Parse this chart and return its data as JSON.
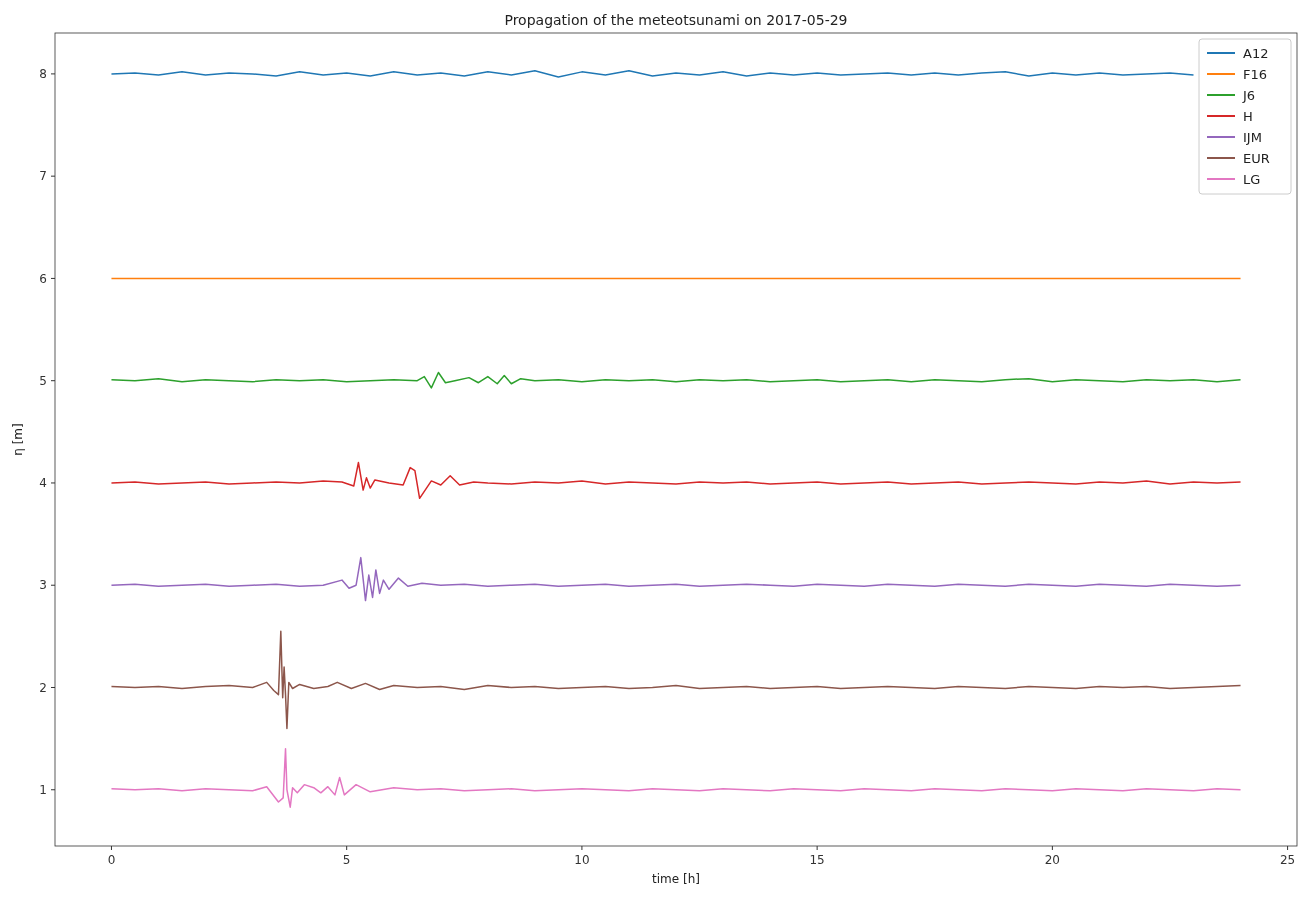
{
  "chart_data": {
    "type": "line",
    "title": "Propagation of the meteotsunami on 2017-05-29",
    "xlabel": "time [h]",
    "ylabel": "η [m]",
    "xlim": [
      -1.2,
      25.2
    ],
    "ylim": [
      0.45,
      8.4
    ],
    "xticks": [
      0,
      5,
      10,
      15,
      20,
      25
    ],
    "yticks": [
      1,
      2,
      3,
      4,
      5,
      6,
      7,
      8
    ],
    "grid": false,
    "legend": "top right",
    "series": [
      {
        "name": "A12",
        "color": "#1f77b4",
        "x": [
          0,
          0.5,
          1,
          1.5,
          2,
          2.5,
          3,
          3.5,
          4,
          4.5,
          5,
          5.5,
          6,
          6.5,
          7,
          7.5,
          8,
          8.5,
          9,
          9.5,
          10,
          10.5,
          11,
          11.5,
          12,
          12.5,
          13,
          13.5,
          14,
          14.5,
          15,
          15.5,
          16,
          16.5,
          17,
          17.5,
          18,
          18.5,
          19,
          19.5,
          20,
          20.5,
          21,
          21.5,
          22,
          22.5,
          23
        ],
        "values": [
          8.0,
          8.01,
          7.99,
          8.02,
          7.99,
          8.01,
          8.0,
          7.98,
          8.02,
          7.99,
          8.01,
          7.98,
          8.02,
          7.99,
          8.01,
          7.98,
          8.02,
          7.99,
          8.03,
          7.97,
          8.02,
          7.99,
          8.03,
          7.98,
          8.01,
          7.99,
          8.02,
          7.98,
          8.01,
          7.99,
          8.01,
          7.99,
          8.0,
          8.01,
          7.99,
          8.01,
          7.99,
          8.01,
          8.02,
          7.98,
          8.01,
          7.99,
          8.01,
          7.99,
          8.0,
          8.01,
          7.99
        ]
      },
      {
        "name": "F16",
        "color": "#ff7f0e",
        "x": [
          0,
          24
        ],
        "values": [
          6,
          6
        ]
      },
      {
        "name": "J6",
        "color": "#2ca02c",
        "x": [
          0,
          0.5,
          1,
          1.5,
          2,
          2.5,
          3,
          3.5,
          4,
          4.5,
          5,
          5.5,
          6,
          6.5,
          6.65,
          6.8,
          6.95,
          7.1,
          7.3,
          7.6,
          7.8,
          8.0,
          8.2,
          8.35,
          8.5,
          8.7,
          9,
          9.5,
          10,
          10.5,
          11,
          11.5,
          12,
          12.5,
          13,
          13.5,
          14,
          14.5,
          15,
          15.5,
          16,
          16.5,
          17,
          17.5,
          18,
          18.5,
          19,
          19.5,
          20,
          20.5,
          21,
          21.5,
          22,
          22.5,
          23,
          23.5,
          24
        ],
        "values": [
          5.01,
          5.0,
          5.02,
          4.99,
          5.01,
          5.0,
          4.99,
          5.01,
          5.0,
          5.01,
          4.99,
          5.0,
          5.01,
          5.0,
          5.04,
          4.93,
          5.08,
          4.98,
          5.0,
          5.03,
          4.98,
          5.04,
          4.97,
          5.05,
          4.97,
          5.02,
          5.0,
          5.01,
          4.99,
          5.01,
          5.0,
          5.01,
          4.99,
          5.01,
          5.0,
          5.01,
          4.99,
          5.0,
          5.01,
          4.99,
          5.0,
          5.01,
          4.99,
          5.01,
          5.0,
          4.99,
          5.01,
          5.02,
          4.99,
          5.01,
          5.0,
          4.99,
          5.01,
          5.0,
          5.01,
          4.99,
          5.01
        ]
      },
      {
        "name": "H",
        "color": "#d62728",
        "x": [
          0,
          0.5,
          1,
          1.5,
          2,
          2.5,
          3,
          3.5,
          4,
          4.5,
          4.9,
          5.15,
          5.25,
          5.35,
          5.42,
          5.5,
          5.6,
          5.9,
          6.2,
          6.35,
          6.45,
          6.55,
          6.8,
          7.0,
          7.2,
          7.4,
          7.7,
          8,
          8.5,
          9,
          9.5,
          10,
          10.5,
          11,
          11.5,
          12,
          12.5,
          13,
          13.5,
          14,
          14.5,
          15,
          15.5,
          16,
          16.5,
          17,
          17.5,
          18,
          18.5,
          19,
          19.5,
          20,
          20.5,
          21,
          21.5,
          22,
          22.5,
          23,
          23.5,
          24
        ],
        "values": [
          4.0,
          4.01,
          3.99,
          4.0,
          4.01,
          3.99,
          4.0,
          4.01,
          4.0,
          4.02,
          4.01,
          3.97,
          4.2,
          3.93,
          4.05,
          3.95,
          4.03,
          4.0,
          3.98,
          4.15,
          4.12,
          3.85,
          4.02,
          3.98,
          4.07,
          3.98,
          4.01,
          4.0,
          3.99,
          4.01,
          4.0,
          4.02,
          3.99,
          4.01,
          4.0,
          3.99,
          4.01,
          4.0,
          4.01,
          3.99,
          4.0,
          4.01,
          3.99,
          4.0,
          4.01,
          3.99,
          4.0,
          4.01,
          3.99,
          4.0,
          4.01,
          4.0,
          3.99,
          4.01,
          4.0,
          4.02,
          3.99,
          4.01,
          4.0,
          4.01
        ]
      },
      {
        "name": "IJM",
        "color": "#9467bd",
        "x": [
          0,
          0.5,
          1,
          1.5,
          2,
          2.5,
          3,
          3.5,
          4,
          4.5,
          4.9,
          5.05,
          5.2,
          5.3,
          5.4,
          5.47,
          5.55,
          5.62,
          5.7,
          5.78,
          5.9,
          6.1,
          6.3,
          6.6,
          7,
          7.5,
          8,
          8.5,
          9,
          9.5,
          10,
          10.5,
          11,
          11.5,
          12,
          12.5,
          13,
          13.5,
          14,
          14.5,
          15,
          15.5,
          16,
          16.5,
          17,
          17.5,
          18,
          18.5,
          19,
          19.5,
          20,
          20.5,
          21,
          21.5,
          22,
          22.5,
          23,
          23.5,
          24
        ],
        "values": [
          3.0,
          3.01,
          2.99,
          3.0,
          3.01,
          2.99,
          3.0,
          3.01,
          2.99,
          3.0,
          3.05,
          2.97,
          3.0,
          3.27,
          2.85,
          3.1,
          2.88,
          3.15,
          2.92,
          3.05,
          2.96,
          3.07,
          2.99,
          3.02,
          3.0,
          3.01,
          2.99,
          3.0,
          3.01,
          2.99,
          3.0,
          3.01,
          2.99,
          3.0,
          3.01,
          2.99,
          3.0,
          3.01,
          3.0,
          2.99,
          3.01,
          3.0,
          2.99,
          3.01,
          3.0,
          2.99,
          3.01,
          3.0,
          2.99,
          3.01,
          3.0,
          2.99,
          3.01,
          3.0,
          2.99,
          3.01,
          3.0,
          2.99,
          3.0
        ]
      },
      {
        "name": "EUR",
        "color": "#8c564b",
        "x": [
          0,
          0.5,
          1,
          1.5,
          2,
          2.5,
          3,
          3.3,
          3.45,
          3.55,
          3.6,
          3.64,
          3.67,
          3.7,
          3.73,
          3.77,
          3.85,
          4.0,
          4.3,
          4.6,
          4.8,
          5.1,
          5.4,
          5.7,
          6,
          6.5,
          7,
          7.5,
          8,
          8.5,
          9,
          9.5,
          10,
          10.5,
          11,
          11.5,
          12,
          12.5,
          13,
          13.5,
          14,
          14.5,
          15,
          15.5,
          16,
          16.5,
          17,
          17.5,
          18,
          18.5,
          19,
          19.5,
          20,
          20.5,
          21,
          21.5,
          22,
          22.5,
          23,
          23.5,
          24
        ],
        "values": [
          2.01,
          2.0,
          2.01,
          1.99,
          2.01,
          2.02,
          2.0,
          2.05,
          1.97,
          1.93,
          2.55,
          1.9,
          2.2,
          1.93,
          1.6,
          2.05,
          1.99,
          2.03,
          1.99,
          2.01,
          2.05,
          1.99,
          2.04,
          1.98,
          2.02,
          2.0,
          2.01,
          1.98,
          2.02,
          2.0,
          2.01,
          1.99,
          2.0,
          2.01,
          1.99,
          2.0,
          2.02,
          1.99,
          2.0,
          2.01,
          1.99,
          2.0,
          2.01,
          1.99,
          2.0,
          2.01,
          2.0,
          1.99,
          2.01,
          2.0,
          1.99,
          2.01,
          2.0,
          1.99,
          2.01,
          2.0,
          2.01,
          1.99,
          2.0,
          2.01,
          2.02
        ]
      },
      {
        "name": "LG",
        "color": "#e377c2",
        "x": [
          0,
          0.5,
          1,
          1.5,
          2,
          2.5,
          3,
          3.3,
          3.55,
          3.65,
          3.7,
          3.73,
          3.8,
          3.85,
          3.95,
          4.1,
          4.3,
          4.45,
          4.6,
          4.75,
          4.85,
          4.95,
          5.2,
          5.5,
          6,
          6.5,
          7,
          7.5,
          8,
          8.5,
          9,
          9.5,
          10,
          10.5,
          11,
          11.5,
          12,
          12.5,
          13,
          13.5,
          14,
          14.5,
          15,
          15.5,
          16,
          16.5,
          17,
          17.5,
          18,
          18.5,
          19,
          19.5,
          20,
          20.5,
          21,
          21.5,
          22,
          22.5,
          23,
          23.5,
          24
        ],
        "values": [
          1.01,
          1.0,
          1.01,
          0.99,
          1.01,
          1.0,
          0.99,
          1.03,
          0.88,
          0.92,
          1.4,
          1.0,
          0.83,
          1.02,
          0.97,
          1.05,
          1.02,
          0.97,
          1.03,
          0.95,
          1.12,
          0.95,
          1.05,
          0.98,
          1.02,
          1.0,
          1.01,
          0.99,
          1.0,
          1.01,
          0.99,
          1.0,
          1.01,
          1.0,
          0.99,
          1.01,
          1.0,
          0.99,
          1.01,
          1.0,
          0.99,
          1.01,
          1.0,
          0.99,
          1.01,
          1.0,
          0.99,
          1.01,
          1.0,
          0.99,
          1.01,
          1.0,
          0.99,
          1.01,
          1.0,
          0.99,
          1.01,
          1.0,
          0.99,
          1.01,
          1.0
        ]
      }
    ]
  }
}
